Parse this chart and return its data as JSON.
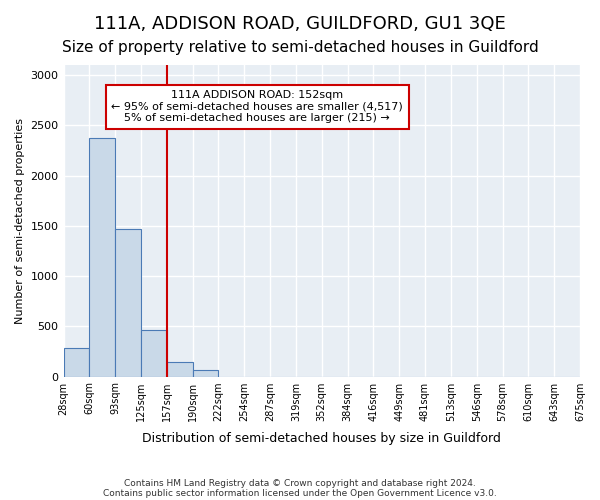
{
  "title": "111A, ADDISON ROAD, GUILDFORD, GU1 3QE",
  "subtitle": "Size of property relative to semi-detached houses in Guildford",
  "xlabel": "Distribution of semi-detached houses by size in Guildford",
  "ylabel": "Number of semi-detached properties",
  "footer_line1": "Contains HM Land Registry data © Crown copyright and database right 2024.",
  "footer_line2": "Contains public sector information licensed under the Open Government Licence v3.0.",
  "bin_labels": [
    "28sqm",
    "60sqm",
    "93sqm",
    "125sqm",
    "157sqm",
    "190sqm",
    "222sqm",
    "254sqm",
    "287sqm",
    "319sqm",
    "352sqm",
    "384sqm",
    "416sqm",
    "449sqm",
    "481sqm",
    "513sqm",
    "546sqm",
    "578sqm",
    "610sqm",
    "643sqm",
    "675sqm"
  ],
  "bar_values": [
    280,
    2370,
    1470,
    460,
    140,
    65,
    0,
    0,
    0,
    0,
    0,
    0,
    0,
    0,
    0,
    0,
    0,
    0,
    0,
    0
  ],
  "bar_color": "#c9d9e8",
  "bar_edge_color": "#4a7ab5",
  "property_line_x": 4,
  "property_line_color": "#cc0000",
  "annotation_text": "111A ADDISON ROAD: 152sqm\n← 95% of semi-detached houses are smaller (4,517)\n5% of semi-detached houses are larger (215) →",
  "annotation_box_color": "#ffffff",
  "annotation_box_edge": "#cc0000",
  "ylim": [
    0,
    3100
  ],
  "yticks": [
    0,
    500,
    1000,
    1500,
    2000,
    2500,
    3000
  ],
  "bg_color": "#e8eef4",
  "grid_color": "#ffffff",
  "title_fontsize": 13,
  "subtitle_fontsize": 11
}
